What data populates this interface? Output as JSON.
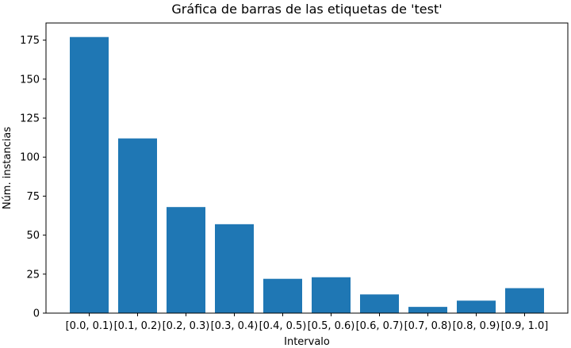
{
  "chart_data": {
    "type": "bar",
    "title": "Gráfica de barras de las etiquetas de 'test'",
    "xlabel": "Intervalo",
    "ylabel": "Núm. instancias",
    "categories": [
      "[0.0, 0.1)",
      "[0.1, 0.2)",
      "[0.2, 0.3)",
      "[0.3, 0.4)",
      "[0.4, 0.5)",
      "[0.5, 0.6)",
      "[0.6, 0.7)",
      "[0.7, 0.8)",
      "[0.8, 0.9)",
      "[0.9, 1.0]"
    ],
    "values": [
      177,
      112,
      68,
      57,
      22,
      23,
      12,
      4,
      8,
      16
    ],
    "ylim": [
      0,
      186
    ],
    "yticks": [
      0,
      25,
      50,
      75,
      100,
      125,
      150,
      175
    ],
    "grid": false,
    "bar_color": "#1f77b4"
  }
}
